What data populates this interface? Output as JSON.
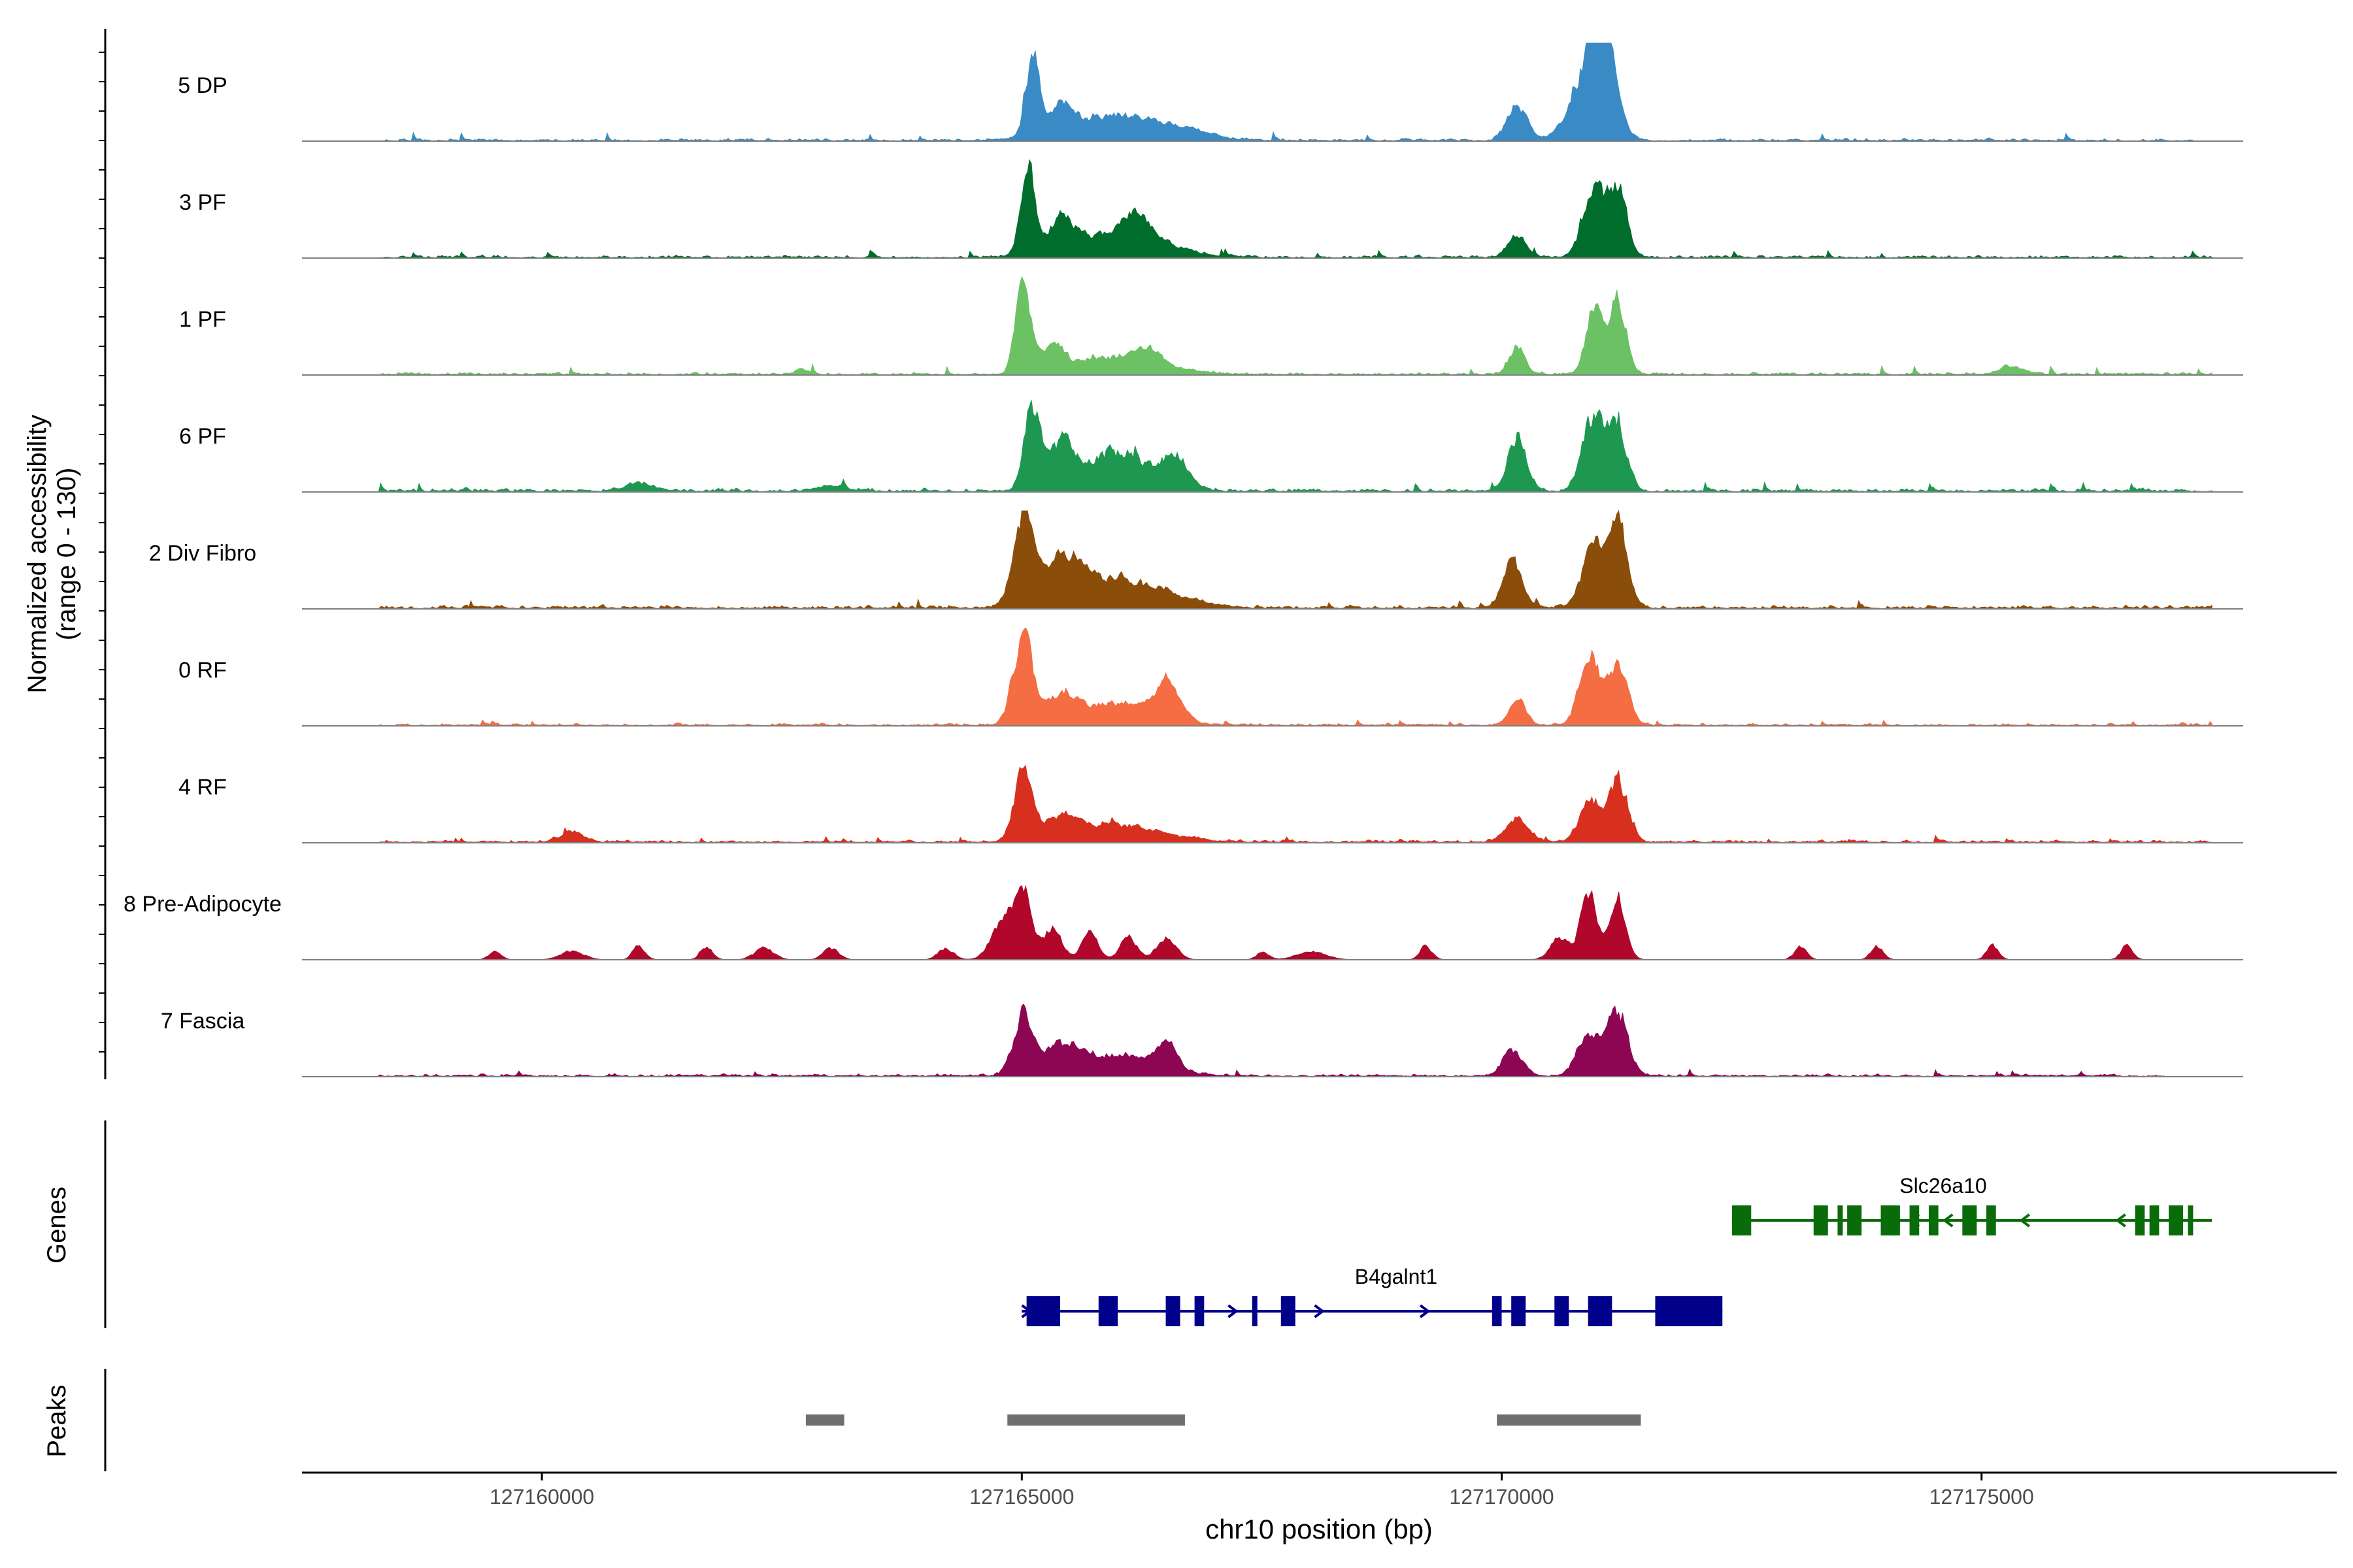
{
  "chart_data": {
    "type": "area",
    "subtype": "genome-coverage-track",
    "ylabel_line1": "Normalized accessibility",
    "ylabel_line2": "(range 0 - 130)",
    "ylim": [
      0,
      130
    ],
    "xlabel": "chr10 position (bp)",
    "xlim": [
      127157500,
      127178700
    ],
    "xticks": [
      127160000,
      127165000,
      127170000,
      127175000
    ],
    "xtick_labels": [
      "127160000",
      "127165000",
      "127170000",
      "127175000"
    ],
    "region_start": 127158300,
    "region_end": 127177400,
    "genes_panel_label": "Genes",
    "peaks_panel_label": "Peaks",
    "tracks": [
      {
        "name": "5 DP",
        "color": "#3a8bc5",
        "bg": 3,
        "noise": 5,
        "stop": 127177200,
        "peaks": [
          [
            127165100,
            60,
            70
          ],
          [
            127165400,
            18,
            110
          ],
          [
            127166000,
            18,
            500
          ],
          [
            127170150,
            26,
            100
          ],
          [
            127170900,
            52,
            180
          ],
          [
            127171050,
            62,
            110
          ],
          [
            127166800,
            3,
            200
          ]
        ]
      },
      {
        "name": "3 PF",
        "color": "#006d2c",
        "bg": 3,
        "noise": 4,
        "stop": 127177400,
        "peaks": [
          [
            127165050,
            64,
            70
          ],
          [
            127165400,
            22,
            130
          ],
          [
            127166000,
            18,
            450
          ],
          [
            127166200,
            16,
            130
          ],
          [
            127170150,
            16,
            90
          ],
          [
            127170950,
            52,
            110
          ],
          [
            127171200,
            50,
            90
          ]
        ]
      },
      {
        "name": "1 PF",
        "color": "#6cc165",
        "bg": 3,
        "noise": 5,
        "stop": 127177400,
        "peaks": [
          [
            127165000,
            67,
            70
          ],
          [
            127165300,
            18,
            120
          ],
          [
            127166000,
            12,
            450
          ],
          [
            127166300,
            10,
            120
          ],
          [
            127170150,
            20,
            80
          ],
          [
            127170950,
            50,
            80
          ],
          [
            127171200,
            55,
            80
          ],
          [
            127162700,
            4,
            60
          ],
          [
            127175300,
            6,
            120
          ]
        ]
      },
      {
        "name": "6 PF",
        "color": "#1e9851",
        "bg": 4,
        "noise": 5,
        "stop": 127177400,
        "peaks": [
          [
            127165100,
            62,
            80
          ],
          [
            127165400,
            30,
            120
          ],
          [
            127166000,
            28,
            350
          ],
          [
            127166600,
            20,
            120
          ],
          [
            127170150,
            40,
            90
          ],
          [
            127170950,
            55,
            110
          ],
          [
            127171200,
            45,
            90
          ],
          [
            127161000,
            5,
            150
          ],
          [
            127163000,
            4,
            150
          ]
        ]
      },
      {
        "name": "2 Div Fibro",
        "color": "#8b4d0a",
        "bg": 4,
        "noise": 5,
        "stop": 127177400,
        "peaks": [
          [
            127165000,
            63,
            100
          ],
          [
            127165400,
            28,
            200
          ],
          [
            127166000,
            20,
            500
          ],
          [
            127170100,
            32,
            100
          ],
          [
            127170950,
            42,
            120
          ],
          [
            127171200,
            57,
            100
          ]
        ]
      },
      {
        "name": "0 RF",
        "color": "#f46d43",
        "bg": 3,
        "noise": 3,
        "stop": 127177400,
        "peaks": [
          [
            127165000,
            62,
            100
          ],
          [
            127165400,
            18,
            150
          ],
          [
            127166000,
            16,
            400
          ],
          [
            127166500,
            26,
            120
          ],
          [
            127170150,
            20,
            80
          ],
          [
            127170900,
            54,
            100
          ],
          [
            127171200,
            43,
            100
          ]
        ]
      },
      {
        "name": "4 RF",
        "color": "#d7301f",
        "bg": 3,
        "noise": 3,
        "stop": 127177400,
        "peaks": [
          [
            127165000,
            48,
            90
          ],
          [
            127165400,
            14,
            180
          ],
          [
            127166000,
            12,
            450
          ],
          [
            127160300,
            8,
            120
          ],
          [
            127170150,
            16,
            120
          ],
          [
            127170900,
            30,
            100
          ],
          [
            127171200,
            45,
            100
          ]
        ]
      },
      {
        "name": "8 Pre-Adipocyte",
        "color": "#b0072a",
        "bg": 0,
        "noise": 0,
        "stop": 127177400,
        "peaks": [
          [
            127165000,
            48,
            80
          ],
          [
            127164800,
            30,
            120
          ],
          [
            127165300,
            22,
            100
          ],
          [
            127165700,
            20,
            80
          ],
          [
            127166100,
            18,
            80
          ],
          [
            127166500,
            16,
            100
          ],
          [
            127170900,
            50,
            80
          ],
          [
            127171200,
            45,
            80
          ],
          [
            127170600,
            16,
            100
          ],
          [
            127159500,
            6,
            60
          ],
          [
            127160300,
            6,
            120
          ],
          [
            127161000,
            10,
            60
          ],
          [
            127161700,
            10,
            60
          ],
          [
            127162300,
            8,
            100
          ],
          [
            127163000,
            8,
            80
          ],
          [
            127164200,
            8,
            80
          ],
          [
            127167500,
            6,
            60
          ],
          [
            127168000,
            6,
            150
          ],
          [
            127169200,
            10,
            60
          ],
          [
            127173100,
            10,
            60
          ],
          [
            127173900,
            10,
            60
          ],
          [
            127175100,
            10,
            60
          ],
          [
            127176500,
            10,
            60
          ]
        ]
      },
      {
        "name": "7 Fascia",
        "color": "#8c0654",
        "bg": 3,
        "noise": 4,
        "stop": 127176900,
        "peaks": [
          [
            127165000,
            42,
            100
          ],
          [
            127165400,
            18,
            200
          ],
          [
            127166000,
            14,
            400
          ],
          [
            127166500,
            20,
            100
          ],
          [
            127170100,
            18,
            100
          ],
          [
            127170900,
            30,
            120
          ],
          [
            127171200,
            47,
            100
          ]
        ]
      }
    ],
    "genes": [
      {
        "name": "Slc26a10",
        "color": "#0a6b0a",
        "start": 127172400,
        "end": 127177400,
        "strand": "-",
        "label_pos": 127174600,
        "exons": [
          [
            127172400,
            127172600
          ],
          [
            127173250,
            127173400
          ],
          [
            127173500,
            127173550
          ],
          [
            127173600,
            127173750
          ],
          [
            127173950,
            127174150
          ],
          [
            127174250,
            127174350
          ],
          [
            127174450,
            127174550
          ],
          [
            127174800,
            127174950
          ],
          [
            127175050,
            127175150
          ],
          [
            127176600,
            127176700
          ],
          [
            127176750,
            127176850
          ],
          [
            127176950,
            127177100
          ],
          [
            127177150,
            127177200
          ]
        ],
        "arrows": [
          127174300,
          127174650,
          127175450,
          127176450
        ]
      },
      {
        "name": "B4galnt1",
        "color": "#00008b",
        "start": 127165000,
        "end": 127172300,
        "strand": "+",
        "label_pos": 127168900,
        "exons": [
          [
            127165050,
            127165400
          ],
          [
            127165800,
            127166000
          ],
          [
            127166500,
            127166650
          ],
          [
            127166800,
            127166900
          ],
          [
            127167400,
            127167450
          ],
          [
            127167700,
            127167850
          ],
          [
            127169900,
            127170000
          ],
          [
            127170100,
            127170250
          ],
          [
            127170550,
            127170700
          ],
          [
            127170900,
            127171150
          ],
          [
            127171600,
            127172300
          ]
        ],
        "arrows": [
          127165050,
          127167200,
          127168100,
          127169200
        ]
      }
    ],
    "peaks": [
      [
        127162750,
        127163150
      ],
      [
        127164850,
        127166700
      ],
      [
        127169950,
        127171450
      ]
    ]
  }
}
